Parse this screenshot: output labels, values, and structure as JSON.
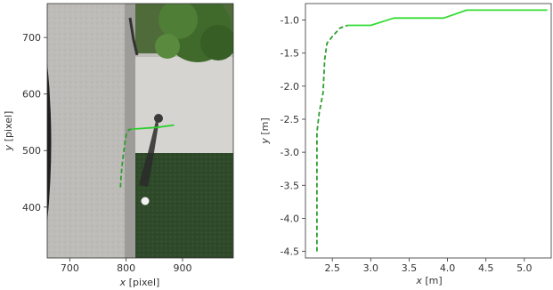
{
  "chart_data": [
    {
      "type": "line",
      "subtype": "trajectory-on-aerial-image",
      "xlabel": "x [pixel]",
      "ylabel": "y [pixel]",
      "xlim": [
        660,
        990
      ],
      "ylim": [
        310,
        760
      ],
      "xticks": [
        700,
        800,
        900
      ],
      "yticks": [
        400,
        500,
        600,
        700
      ],
      "background": "aerial photo: gray asphalt road (left), sidewalk and concrete path, green tree (top-right), grass lawn (bottom-right), pedestrian with shadow",
      "series": [
        {
          "style": "dashed",
          "color": "#2e9e2e",
          "x": [
            790,
            791,
            793,
            795,
            797,
            799,
            801,
            805,
            810
          ],
          "y": [
            435,
            455,
            475,
            492,
            508,
            522,
            532,
            537,
            538
          ]
        },
        {
          "style": "solid",
          "color": "#2ecf2e",
          "x": [
            810,
            825,
            840,
            855,
            870,
            885
          ],
          "y": [
            538,
            539,
            540,
            541,
            543,
            545
          ]
        }
      ]
    },
    {
      "type": "line",
      "xlabel": "x [m]",
      "ylabel": "y [m]",
      "xlim": [
        2.15,
        5.35
      ],
      "ylim": [
        -4.6,
        -0.75
      ],
      "xticks": [
        "2.5",
        "3.0",
        "3.5",
        "4.0",
        "4.5",
        "5.0"
      ],
      "yticks": [
        "-1.0",
        "-1.5",
        "-2.0",
        "-2.5",
        "-3.0",
        "-3.5",
        "-4.0",
        "-4.5"
      ],
      "grid": false,
      "series": [
        {
          "style": "dashed",
          "color": "#2e9e2e",
          "x": [
            2.3,
            2.3,
            2.33,
            2.38,
            2.4,
            2.43,
            2.5,
            2.6,
            2.7
          ],
          "y": [
            -4.5,
            -2.7,
            -2.4,
            -2.1,
            -1.6,
            -1.35,
            -1.25,
            -1.12,
            -1.08
          ]
        },
        {
          "style": "solid",
          "color": "#33dd33",
          "x": [
            2.7,
            3.0,
            3.3,
            3.95,
            4.25,
            5.3
          ],
          "y": [
            -1.08,
            -1.08,
            -0.97,
            -0.97,
            -0.85,
            -0.85
          ]
        }
      ]
    }
  ]
}
